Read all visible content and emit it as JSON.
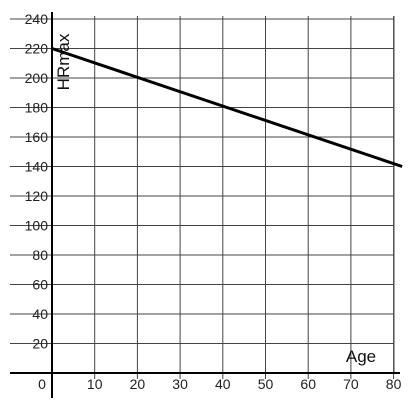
{
  "chart_data": {
    "type": "line",
    "xlabel": "Age",
    "ylabel": "HRmax",
    "xlim": [
      0,
      82
    ],
    "ylim": [
      0,
      240
    ],
    "grid": true,
    "x_ticks": [
      0,
      10,
      20,
      30,
      40,
      50,
      60,
      70,
      80
    ],
    "x_tick_labels": [
      "0",
      "10",
      "20",
      "30",
      "40",
      "50",
      "60",
      "70",
      "80"
    ],
    "y_ticks": [
      20,
      40,
      60,
      80,
      100,
      120,
      140,
      160,
      180,
      200,
      220,
      240
    ],
    "y_tick_labels": [
      "20",
      "40",
      "60",
      "80",
      "100",
      "120",
      "140",
      "160",
      "180",
      "200",
      "220",
      "240"
    ],
    "series": [
      {
        "x": [
          0,
          82
        ],
        "y": [
          220,
          140
        ],
        "color": "#000000"
      }
    ]
  }
}
